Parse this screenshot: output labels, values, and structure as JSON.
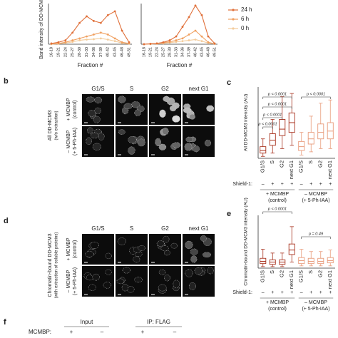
{
  "chart_data": [
    {
      "type": "line",
      "y_label": "Band intensity of DD-MCM3 (A",
      "x_label": "Fraction #",
      "categories": [
        "16-18",
        "19-21",
        "22-24",
        "25-27",
        "28-30",
        "31-33",
        "34-36",
        "37-39",
        "40-42",
        "43-45",
        "46-48",
        "49-51"
      ],
      "ylim": [
        0,
        1.05
      ],
      "series": [
        {
          "color": "#e0703a",
          "values": [
            0.02,
            0.05,
            0.1,
            0.3,
            0.55,
            0.72,
            0.6,
            0.55,
            0.75,
            0.85,
            0.35,
            0.05
          ]
        },
        {
          "color": "#f0a060",
          "values": [
            0.01,
            0.02,
            0.05,
            0.1,
            0.15,
            0.2,
            0.25,
            0.3,
            0.25,
            0.15,
            0.05,
            0.02
          ]
        },
        {
          "color": "#f3cc9c",
          "values": [
            0,
            0.01,
            0.03,
            0.06,
            0.1,
            0.12,
            0.13,
            0.15,
            0.12,
            0.08,
            0.03,
            0.01
          ]
        }
      ]
    },
    {
      "type": "line",
      "x_label": "Fraction #",
      "categories": [
        "16-18",
        "19-21",
        "22-24",
        "25-27",
        "28-30",
        "31-33",
        "34-36",
        "37-39",
        "40-42",
        "43-45",
        "46-48",
        "49-51"
      ],
      "ylim": [
        0,
        1.05
      ],
      "legend": "right",
      "series": [
        {
          "name": "24 h",
          "color": "#e0703a",
          "values": [
            0,
            0.01,
            0.02,
            0.05,
            0.1,
            0.2,
            0.45,
            0.7,
            1.0,
            0.75,
            0.2,
            0.02
          ]
        },
        {
          "name": "6 h",
          "color": "#f0a060",
          "values": [
            0,
            0.01,
            0.02,
            0.04,
            0.06,
            0.1,
            0.15,
            0.25,
            0.35,
            0.2,
            0.05,
            0.01
          ]
        },
        {
          "name": "0 h",
          "color": "#f3cc9c",
          "values": [
            0,
            0,
            0.01,
            0.02,
            0.04,
            0.06,
            0.08,
            0.1,
            0.12,
            0.08,
            0.03,
            0.01
          ]
        }
      ]
    },
    {
      "type": "box",
      "letter": "c",
      "y_label": "All DD-MCM3 intensity (AU)",
      "ylim": [
        0,
        11
      ],
      "categories": [
        "G1/S",
        "S",
        "G2",
        "next G1",
        "G1/S",
        "S",
        "G2",
        "next G1"
      ],
      "boxes": [
        {
          "min": 0.3,
          "q1": 0.8,
          "median": 1.2,
          "q3": 1.8,
          "max": 3
        },
        {
          "min": 0.8,
          "q1": 2,
          "median": 2.8,
          "q3": 3.8,
          "max": 6
        },
        {
          "min": 1.5,
          "q1": 3.5,
          "median": 4.5,
          "q3": 6,
          "max": 9.5
        },
        {
          "min": 2,
          "q1": 4,
          "median": 5.5,
          "q3": 7,
          "max": 10
        },
        {
          "min": 0.5,
          "q1": 1.2,
          "median": 1.8,
          "q3": 2.6,
          "max": 4
        },
        {
          "min": 1,
          "q1": 2.2,
          "median": 3,
          "q3": 4,
          "max": 6.5
        },
        {
          "min": 1.5,
          "q1": 3,
          "median": 4,
          "q3": 5.3,
          "max": 8.5
        },
        {
          "min": 1.5,
          "q1": 3,
          "median": 4.2,
          "q3": 5.5,
          "max": 9
        }
      ],
      "shield_label": "Shield-1:",
      "shield": [
        "–",
        "+",
        "+",
        "+",
        "–",
        "+",
        "+",
        "+"
      ],
      "groups": [
        {
          "label": "+ MCMBP",
          "sublabel": "(control)",
          "color": "#a8321e"
        },
        {
          "label": "– MCMBP",
          "sublabel": "(+ 5-Ph-IAA)",
          "color": "#e89a7a"
        }
      ],
      "annotations": [
        "p < 0.0001",
        "p < 0.0001",
        "p < 0.0001",
        "p < 0.0001",
        "p < 0.0001"
      ]
    },
    {
      "type": "box",
      "letter": "e",
      "y_label": "Chromatin-bound DD-MCM3 intensity (AU)",
      "ylim": [
        0,
        7
      ],
      "categories": [
        "G1/S",
        "S",
        "G2",
        "next G1",
        "G1/S",
        "S",
        "G2",
        "next G1"
      ],
      "boxes": [
        {
          "min": 0.2,
          "q1": 0.6,
          "median": 0.9,
          "q3": 1.3,
          "max": 2.5
        },
        {
          "min": 0.2,
          "q1": 0.5,
          "median": 0.8,
          "q3": 1.1,
          "max": 2
        },
        {
          "min": 0.2,
          "q1": 0.5,
          "median": 0.8,
          "q3": 1.1,
          "max": 2
        },
        {
          "min": 0.8,
          "q1": 1.8,
          "median": 2.4,
          "q3": 3.2,
          "max": 5.5
        },
        {
          "min": 0.3,
          "q1": 0.6,
          "median": 1,
          "q3": 1.4,
          "max": 2.5
        },
        {
          "min": 0.3,
          "q1": 0.6,
          "median": 0.9,
          "q3": 1.3,
          "max": 2.2
        },
        {
          "min": 0.3,
          "q1": 0.6,
          "median": 0.9,
          "q3": 1.3,
          "max": 2.2
        },
        {
          "min": 0.3,
          "q1": 0.7,
          "median": 1,
          "q3": 1.4,
          "max": 2.4
        }
      ],
      "shield_label": "Shield-1:",
      "shield": [
        "–",
        "+",
        "+",
        "+",
        "–",
        "+",
        "+",
        "+"
      ],
      "groups": [
        {
          "label": "+ MCMBP",
          "sublabel": "(control)",
          "color": "#a8321e"
        },
        {
          "label": "– MCMBP",
          "sublabel": "(+ 5-Ph-IAA)",
          "color": "#e89a7a"
        }
      ],
      "annotations": [
        "p < 0.0001",
        "p = 0.49"
      ]
    }
  ],
  "panel_b": {
    "letter": "b",
    "side_label": "All DD-MCM3",
    "side_sublabel": "(w/o extraction)",
    "columns": [
      "G1/S",
      "S",
      "G2",
      "next G1"
    ],
    "rows": [
      {
        "label": "+ MCMBP",
        "sublabel": "(control)"
      },
      {
        "label": "– MCMBP",
        "sublabel": "(+ 5-Ph-IAA)"
      }
    ]
  },
  "panel_d": {
    "letter": "d",
    "side_label": "Chromatin-bound DD-MCM3",
    "side_sublabel": "(with extraction of soluble proteins)",
    "columns": [
      "G1/S",
      "S",
      "G2",
      "next G1"
    ],
    "rows": [
      {
        "label": "+ MCMBP",
        "sublabel": "(control)"
      },
      {
        "label": "– MCMBP",
        "sublabel": "(+ 5-Ph-IAA)"
      }
    ]
  },
  "panel_f": {
    "letter": "f",
    "groups": [
      "Input",
      "IP: FLAG"
    ],
    "row_label": "MCMBP:",
    "signs": [
      "+",
      "–",
      "+",
      "–"
    ]
  }
}
